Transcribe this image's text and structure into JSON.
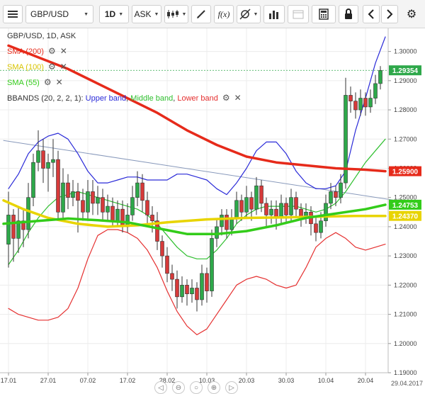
{
  "toolbar": {
    "symbol": "GBP/USD",
    "interval": "1D",
    "price_type": "ASK",
    "fx_label": "f(x)"
  },
  "legend": {
    "header": "GBP/USD, 1D, ASK",
    "sma200": "SMA (200)",
    "sma100": "SMA (100)",
    "sma55": "SMA (55)",
    "bbands_prefix": "BBANDS (20, 2, 2, 1): ",
    "upper": "Upper band",
    "middle": "Middle band",
    "lower": "Lower band",
    "sep1": ", ",
    "sep2": ", "
  },
  "colors": {
    "up": "#2ea84a",
    "down": "#d63a3a",
    "sma200": "#e62a1a",
    "sma100": "#e8d400",
    "sma55": "#33cc1a",
    "upper": "#2a2ad8",
    "middle": "#2fbf2f",
    "lower": "#e53030",
    "trend": "#8899bb"
  },
  "icons": [
    "menu-icon",
    "symbol-dropdown-icon",
    "candles-icon",
    "draw-pencil-icon",
    "indicator-fx-icon",
    "crosshair-icon",
    "volume-bars-icon",
    "calendar-icon",
    "calculator-icon",
    "lock-icon",
    "chevron-left-icon",
    "chevron-right-icon",
    "gear-icon",
    "zoom-out-icon",
    "zoom-in-icon",
    "search-icon",
    "scroll-right-icon"
  ],
  "chart_data": {
    "type": "candlestick",
    "ylim": [
      1.19,
      1.305
    ],
    "yticks": [
      "1.19000",
      "1.20000",
      "1.21000",
      "1.22000",
      "1.23000",
      "1.24000",
      "1.25000",
      "1.26000",
      "1.27000",
      "1.28000",
      "1.29000",
      "1.30000"
    ],
    "xticks": [
      "17.01",
      "27.01",
      "07.02",
      "17.02",
      "28.02",
      "10.03",
      "20.03",
      "30.03",
      "10.04",
      "20.04"
    ],
    "xtick_idx": [
      0,
      8,
      16,
      24,
      32,
      40,
      48,
      56,
      64,
      72
    ],
    "end_date_label": "29.04.2017",
    "price_labels": [
      {
        "text": "1.29354",
        "value": 1.29354,
        "color": "#2ea84a"
      },
      {
        "text": "1.25900",
        "value": 1.259,
        "color": "#e62a1a"
      },
      {
        "text": "1.24753",
        "value": 1.24753,
        "color": "#33cc1a"
      },
      {
        "text": "1.24370",
        "value": 1.2437,
        "color": "#e8d400"
      }
    ],
    "candles": [
      [
        1.234,
        1.244,
        1.252,
        1.226
      ],
      [
        1.244,
        1.236,
        1.246,
        1.228
      ],
      [
        1.236,
        1.242,
        1.247,
        1.231
      ],
      [
        1.242,
        1.239,
        1.246,
        1.233
      ],
      [
        1.239,
        1.25,
        1.255,
        1.236
      ],
      [
        1.25,
        1.262,
        1.265,
        1.247
      ],
      [
        1.262,
        1.266,
        1.273,
        1.259
      ],
      [
        1.266,
        1.26,
        1.27,
        1.255
      ],
      [
        1.26,
        1.262,
        1.265,
        1.252
      ],
      [
        1.262,
        1.263,
        1.27,
        1.257
      ],
      [
        1.263,
        1.245,
        1.266,
        1.242
      ],
      [
        1.245,
        1.255,
        1.26,
        1.243
      ],
      [
        1.255,
        1.25,
        1.258,
        1.246
      ],
      [
        1.25,
        1.252,
        1.256,
        1.247
      ],
      [
        1.252,
        1.249,
        1.255,
        1.238
      ],
      [
        1.249,
        1.245,
        1.253,
        1.242
      ],
      [
        1.245,
        1.252,
        1.256,
        1.242
      ],
      [
        1.252,
        1.248,
        1.256,
        1.244
      ],
      [
        1.248,
        1.25,
        1.254,
        1.244
      ],
      [
        1.25,
        1.245,
        1.253,
        1.242
      ],
      [
        1.245,
        1.247,
        1.251,
        1.242
      ],
      [
        1.247,
        1.242,
        1.25,
        1.24
      ],
      [
        1.242,
        1.246,
        1.249,
        1.24
      ],
      [
        1.246,
        1.24,
        1.249,
        1.238
      ],
      [
        1.24,
        1.244,
        1.248,
        1.238
      ],
      [
        1.244,
        1.25,
        1.254,
        1.242
      ],
      [
        1.25,
        1.255,
        1.259,
        1.247
      ],
      [
        1.255,
        1.249,
        1.258,
        1.245
      ],
      [
        1.249,
        1.244,
        1.252,
        1.241
      ],
      [
        1.244,
        1.242,
        1.247,
        1.238
      ],
      [
        1.242,
        1.235,
        1.245,
        1.232
      ],
      [
        1.235,
        1.23,
        1.237,
        1.226
      ],
      [
        1.23,
        1.224,
        1.233,
        1.221
      ],
      [
        1.224,
        1.222,
        1.227,
        1.218
      ],
      [
        1.222,
        1.216,
        1.225,
        1.212
      ],
      [
        1.216,
        1.22,
        1.223,
        1.214
      ],
      [
        1.22,
        1.217,
        1.222,
        1.213
      ],
      [
        1.217,
        1.219,
        1.222,
        1.214
      ],
      [
        1.219,
        1.215,
        1.221,
        1.211
      ],
      [
        1.215,
        1.224,
        1.227,
        1.213
      ],
      [
        1.224,
        1.218,
        1.226,
        1.214
      ],
      [
        1.218,
        1.236,
        1.239,
        1.216
      ],
      [
        1.236,
        1.24,
        1.243,
        1.233
      ],
      [
        1.24,
        1.244,
        1.246,
        1.237
      ],
      [
        1.244,
        1.239,
        1.246,
        1.236
      ],
      [
        1.239,
        1.243,
        1.246,
        1.237
      ],
      [
        1.243,
        1.249,
        1.252,
        1.241
      ],
      [
        1.249,
        1.245,
        1.251,
        1.242
      ],
      [
        1.245,
        1.25,
        1.254,
        1.243
      ],
      [
        1.25,
        1.246,
        1.252,
        1.242
      ],
      [
        1.246,
        1.254,
        1.257,
        1.244
      ],
      [
        1.254,
        1.248,
        1.256,
        1.245
      ],
      [
        1.248,
        1.244,
        1.25,
        1.24
      ],
      [
        1.244,
        1.246,
        1.249,
        1.241
      ],
      [
        1.246,
        1.243,
        1.249,
        1.239
      ],
      [
        1.243,
        1.248,
        1.251,
        1.241
      ],
      [
        1.248,
        1.244,
        1.25,
        1.241
      ],
      [
        1.244,
        1.25,
        1.253,
        1.242
      ],
      [
        1.25,
        1.246,
        1.252,
        1.243
      ],
      [
        1.246,
        1.243,
        1.248,
        1.24
      ],
      [
        1.243,
        1.245,
        1.248,
        1.241
      ],
      [
        1.245,
        1.241,
        1.247,
        1.237
      ],
      [
        1.241,
        1.238,
        1.243,
        1.235
      ],
      [
        1.238,
        1.242,
        1.245,
        1.236
      ],
      [
        1.242,
        1.248,
        1.251,
        1.24
      ],
      [
        1.248,
        1.252,
        1.255,
        1.246
      ],
      [
        1.252,
        1.25,
        1.254,
        1.247
      ],
      [
        1.25,
        1.255,
        1.258,
        1.248
      ],
      [
        1.255,
        1.285,
        1.291,
        1.253
      ],
      [
        1.285,
        1.283,
        1.288,
        1.279
      ],
      [
        1.283,
        1.28,
        1.286,
        1.277
      ],
      [
        1.28,
        1.284,
        1.287,
        1.278
      ],
      [
        1.284,
        1.281,
        1.286,
        1.278
      ],
      [
        1.281,
        1.284,
        1.287,
        1.279
      ],
      [
        1.284,
        1.289,
        1.292,
        1.282
      ],
      [
        1.289,
        1.2935,
        1.295,
        1.287
      ]
    ],
    "series": [
      {
        "key": "sma200",
        "width": 3.5,
        "points": [
          [
            0,
            1.302
          ],
          [
            6,
            1.298
          ],
          [
            12,
            1.294
          ],
          [
            18,
            1.289
          ],
          [
            24,
            1.284
          ],
          [
            30,
            1.279
          ],
          [
            36,
            1.273
          ],
          [
            42,
            1.268
          ],
          [
            48,
            1.264
          ],
          [
            54,
            1.262
          ],
          [
            60,
            1.261
          ],
          [
            66,
            1.26
          ],
          [
            72,
            1.2595
          ],
          [
            76,
            1.259
          ]
        ]
      },
      {
        "key": "sma100",
        "width": 3.5,
        "points": [
          [
            -1,
            1.249
          ],
          [
            3,
            1.246
          ],
          [
            8,
            1.243
          ],
          [
            14,
            1.241
          ],
          [
            20,
            1.24
          ],
          [
            26,
            1.2405
          ],
          [
            32,
            1.2415
          ],
          [
            40,
            1.2425
          ],
          [
            48,
            1.243
          ],
          [
            56,
            1.2432
          ],
          [
            64,
            1.2435
          ],
          [
            70,
            1.2437
          ],
          [
            76,
            1.2437
          ]
        ]
      },
      {
        "key": "sma55",
        "width": 3.5,
        "points": [
          [
            -1,
            1.241
          ],
          [
            6,
            1.242
          ],
          [
            12,
            1.2428
          ],
          [
            18,
            1.2422
          ],
          [
            24,
            1.2415
          ],
          [
            30,
            1.2395
          ],
          [
            36,
            1.2375
          ],
          [
            42,
            1.2375
          ],
          [
            48,
            1.2385
          ],
          [
            54,
            1.2405
          ],
          [
            60,
            1.243
          ],
          [
            66,
            1.2445
          ],
          [
            72,
            1.246
          ],
          [
            76,
            1.24753
          ]
        ]
      },
      {
        "key": "upper",
        "width": 1.2,
        "points": [
          [
            0,
            1.253
          ],
          [
            2,
            1.258
          ],
          [
            4,
            1.265
          ],
          [
            6,
            1.269
          ],
          [
            8,
            1.271
          ],
          [
            10,
            1.272
          ],
          [
            12,
            1.27
          ],
          [
            14,
            1.265
          ],
          [
            16,
            1.259
          ],
          [
            18,
            1.255
          ],
          [
            20,
            1.255
          ],
          [
            22,
            1.256
          ],
          [
            24,
            1.257
          ],
          [
            26,
            1.257
          ],
          [
            28,
            1.256
          ],
          [
            30,
            1.256
          ],
          [
            32,
            1.256
          ],
          [
            34,
            1.258
          ],
          [
            36,
            1.258
          ],
          [
            38,
            1.257
          ],
          [
            40,
            1.256
          ],
          [
            42,
            1.253
          ],
          [
            44,
            1.251
          ],
          [
            46,
            1.255
          ],
          [
            48,
            1.26
          ],
          [
            50,
            1.266
          ],
          [
            52,
            1.269
          ],
          [
            54,
            1.269
          ],
          [
            56,
            1.265
          ],
          [
            58,
            1.259
          ],
          [
            60,
            1.255
          ],
          [
            62,
            1.253
          ],
          [
            64,
            1.253
          ],
          [
            66,
            1.254
          ],
          [
            68,
            1.259
          ],
          [
            70,
            1.273
          ],
          [
            72,
            1.284
          ],
          [
            74,
            1.296
          ],
          [
            76,
            1.305
          ]
        ]
      },
      {
        "key": "middle",
        "width": 1.2,
        "points": [
          [
            0,
            1.227
          ],
          [
            2,
            1.232
          ],
          [
            4,
            1.238
          ],
          [
            6,
            1.243
          ],
          [
            8,
            1.247
          ],
          [
            10,
            1.25
          ],
          [
            12,
            1.251
          ],
          [
            14,
            1.252
          ],
          [
            16,
            1.251
          ],
          [
            18,
            1.25
          ],
          [
            20,
            1.249
          ],
          [
            22,
            1.248
          ],
          [
            24,
            1.247
          ],
          [
            26,
            1.246
          ],
          [
            28,
            1.244
          ],
          [
            30,
            1.241
          ],
          [
            32,
            1.237
          ],
          [
            34,
            1.233
          ],
          [
            36,
            1.23
          ],
          [
            38,
            1.229
          ],
          [
            40,
            1.229
          ],
          [
            42,
            1.232
          ],
          [
            44,
            1.236
          ],
          [
            46,
            1.241
          ],
          [
            48,
            1.244
          ],
          [
            50,
            1.246
          ],
          [
            52,
            1.247
          ],
          [
            54,
            1.247
          ],
          [
            56,
            1.247
          ],
          [
            58,
            1.247
          ],
          [
            60,
            1.246
          ],
          [
            62,
            1.245
          ],
          [
            64,
            1.246
          ],
          [
            66,
            1.248
          ],
          [
            68,
            1.252
          ],
          [
            70,
            1.257
          ],
          [
            72,
            1.262
          ],
          [
            74,
            1.266
          ],
          [
            76,
            1.27
          ]
        ]
      },
      {
        "key": "lower",
        "width": 1.2,
        "points": [
          [
            0,
            1.212
          ],
          [
            2,
            1.21
          ],
          [
            4,
            1.209
          ],
          [
            6,
            1.208
          ],
          [
            8,
            1.208
          ],
          [
            10,
            1.209
          ],
          [
            12,
            1.212
          ],
          [
            14,
            1.219
          ],
          [
            16,
            1.229
          ],
          [
            18,
            1.237
          ],
          [
            20,
            1.239
          ],
          [
            22,
            1.239
          ],
          [
            24,
            1.238
          ],
          [
            26,
            1.236
          ],
          [
            28,
            1.232
          ],
          [
            30,
            1.226
          ],
          [
            32,
            1.218
          ],
          [
            34,
            1.211
          ],
          [
            36,
            1.206
          ],
          [
            38,
            1.203
          ],
          [
            40,
            1.205
          ],
          [
            42,
            1.21
          ],
          [
            44,
            1.215
          ],
          [
            46,
            1.22
          ],
          [
            48,
            1.222
          ],
          [
            50,
            1.223
          ],
          [
            52,
            1.222
          ],
          [
            54,
            1.22
          ],
          [
            56,
            1.219
          ],
          [
            58,
            1.22
          ],
          [
            60,
            1.226
          ],
          [
            62,
            1.233
          ],
          [
            64,
            1.236
          ],
          [
            66,
            1.238
          ],
          [
            68,
            1.236
          ],
          [
            70,
            1.233
          ],
          [
            72,
            1.232
          ],
          [
            74,
            1.233
          ],
          [
            76,
            1.234
          ]
        ]
      },
      {
        "key": "trend",
        "width": 1,
        "points": [
          [
            -1,
            1.2695
          ],
          [
            80,
            1.2485
          ]
        ]
      }
    ]
  }
}
